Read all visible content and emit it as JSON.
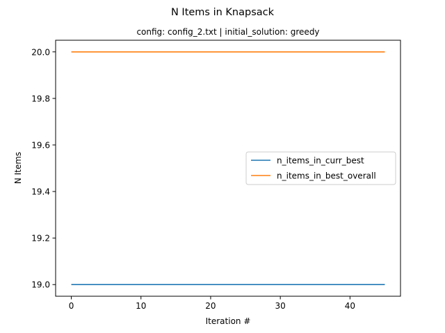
{
  "chart_data": {
    "type": "line",
    "title": "N Items in Knapsack",
    "subtitle": "config: config_2.txt | initial_solution: greedy",
    "xlabel": "Iteration #",
    "ylabel": "N Items",
    "xlim": [
      -2.25,
      47.25
    ],
    "ylim": [
      18.95,
      20.05
    ],
    "xticks": [
      0,
      10,
      20,
      30,
      40
    ],
    "yticks": [
      19.0,
      19.2,
      19.4,
      19.6,
      19.8,
      20.0
    ],
    "xtick_labels": [
      "0",
      "10",
      "20",
      "30",
      "40"
    ],
    "ytick_labels": [
      "19.0",
      "19.2",
      "19.4",
      "19.6",
      "19.8",
      "20.0"
    ],
    "grid": false,
    "legend_position": "center-right",
    "series": [
      {
        "name": "n_items_in_curr_best",
        "color": "#1f77b4",
        "x": [
          0,
          45
        ],
        "y": [
          19,
          19
        ]
      },
      {
        "name": "n_items_in_best_overall",
        "color": "#ff7f0e",
        "x": [
          0,
          45
        ],
        "y": [
          20,
          20
        ]
      }
    ]
  }
}
